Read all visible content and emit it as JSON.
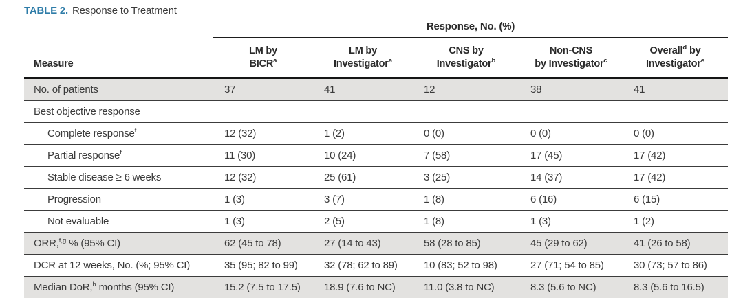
{
  "title": {
    "tag": "TABLE 2.",
    "text": "Response to Treatment"
  },
  "colors": {
    "accent_teal": "#2e7ca8",
    "row_shade": "#e3e2e0",
    "rule_dark": "#1d1d1d",
    "text": "#3b3b3b"
  },
  "table": {
    "spanner": "Response, No. (%)",
    "measure_header": "Measure",
    "columns": [
      {
        "line1": [
          "LM by"
        ],
        "line2": [
          "BICR",
          {
            "sup": "a"
          }
        ]
      },
      {
        "line1": [
          "LM by"
        ],
        "line2": [
          "Investigator",
          {
            "sup": "a"
          }
        ]
      },
      {
        "line1": [
          "CNS by"
        ],
        "line2": [
          "Investigator",
          {
            "sup": "b"
          }
        ]
      },
      {
        "line1": [
          "Non-CNS"
        ],
        "line2": [
          "by Investigator",
          {
            "sup": "c"
          }
        ]
      },
      {
        "line1": [
          "Overall",
          {
            "sup": "d"
          },
          " by"
        ],
        "line2": [
          "Investigator",
          {
            "sup": "e"
          }
        ]
      }
    ],
    "rows": [
      {
        "label": [
          "No. of patients"
        ],
        "values": [
          "37",
          "41",
          "12",
          "38",
          "41"
        ]
      },
      {
        "label": [
          "Best objective response"
        ],
        "values": [
          "",
          "",
          "",
          "",
          ""
        ]
      },
      {
        "label": [
          "Complete response",
          {
            "sup": "f"
          }
        ],
        "values": [
          "12 (32)",
          "1 (2)",
          "0 (0)",
          "0 (0)",
          "0 (0)"
        ]
      },
      {
        "label": [
          "Partial response",
          {
            "sup": "f"
          }
        ],
        "values": [
          "11 (30)",
          "10 (24)",
          "7 (58)",
          "17 (45)",
          "17 (42)"
        ]
      },
      {
        "label": [
          "Stable disease ≥ 6 weeks"
        ],
        "values": [
          "12 (32)",
          "25 (61)",
          "3 (25)",
          "14 (37)",
          "17 (42)"
        ]
      },
      {
        "label": [
          "Progression"
        ],
        "values": [
          "1 (3)",
          "3 (7)",
          "1 (8)",
          "6 (16)",
          "6 (15)"
        ]
      },
      {
        "label": [
          "Not evaluable"
        ],
        "values": [
          "1 (3)",
          "2 (5)",
          "1 (8)",
          "1 (3)",
          "1 (2)"
        ]
      },
      {
        "label": [
          "ORR,",
          {
            "sup": "f,g"
          },
          " % (95% CI)"
        ],
        "values": [
          "62 (45 to 78)",
          "27 (14 to 43)",
          "58 (28 to 85)",
          "45 (29 to 62)",
          "41 (26 to 58)"
        ]
      },
      {
        "label": [
          "DCR at 12 weeks, No. (%; 95% CI)"
        ],
        "values": [
          "35 (95; 82 to 99)",
          "32 (78; 62 to 89)",
          "10 (83; 52 to 98)",
          "27 (71; 54 to 85)",
          "30 (73; 57 to 86)"
        ]
      },
      {
        "label": [
          "Median DoR,",
          {
            "sup": "h"
          },
          " months (95% CI)"
        ],
        "values": [
          "15.2 (7.5 to 17.5)",
          "18.9 (7.6 to NC)",
          "11.0 (3.8 to NC)",
          "8.3 (5.6 to NC)",
          "8.3 (5.6 to 16.5)"
        ]
      }
    ]
  }
}
